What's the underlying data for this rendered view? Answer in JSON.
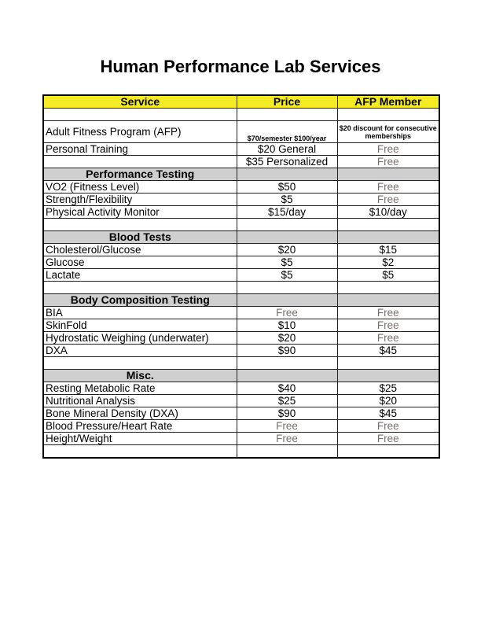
{
  "title": "Human Performance Lab Services",
  "colors": {
    "header_bg": "#f5eb22",
    "section_bg": "#cfcfcf",
    "free_text": "#7d716c"
  },
  "table": {
    "headers": [
      "Service",
      "Price",
      "AFP Member"
    ],
    "rows": [
      {
        "type": "blank"
      },
      {
        "type": "afp",
        "cells": [
          "Adult Fitness Program (AFP)",
          "$70/semester  $100/year",
          "$20 discount for consecutive memberships"
        ]
      },
      {
        "type": "data",
        "cells": [
          "Personal Training",
          "$20 General",
          "Free"
        ]
      },
      {
        "type": "data",
        "cells": [
          "",
          "$35 Personalized",
          "Free"
        ]
      },
      {
        "type": "section",
        "cells": [
          "Performance Testing",
          "",
          ""
        ]
      },
      {
        "type": "data",
        "cells": [
          "VO2 (Fitness Level)",
          "$50",
          "Free"
        ]
      },
      {
        "type": "data",
        "cells": [
          "Strength/Flexibility",
          "$5",
          "Free"
        ]
      },
      {
        "type": "data",
        "cells": [
          "Physical Activity Monitor",
          "$15/day",
          "$10/day"
        ]
      },
      {
        "type": "blank"
      },
      {
        "type": "section",
        "cells": [
          "Blood Tests",
          "",
          ""
        ]
      },
      {
        "type": "data",
        "cells": [
          "Cholesterol/Glucose",
          "$20",
          "$15"
        ]
      },
      {
        "type": "data",
        "cells": [
          "Glucose",
          "$5",
          "$2"
        ]
      },
      {
        "type": "data",
        "cells": [
          "Lactate",
          "$5",
          "$5"
        ]
      },
      {
        "type": "blank"
      },
      {
        "type": "section",
        "cells": [
          "Body Composition Testing",
          "",
          ""
        ]
      },
      {
        "type": "data",
        "cells": [
          "BIA",
          "Free",
          "Free"
        ]
      },
      {
        "type": "data",
        "cells": [
          "SkinFold",
          "$10",
          "Free"
        ]
      },
      {
        "type": "data",
        "cells": [
          "Hydrostatic Weighing (underwater)",
          "$20",
          "Free"
        ]
      },
      {
        "type": "data",
        "cells": [
          "DXA",
          "$90",
          "$45"
        ]
      },
      {
        "type": "blank"
      },
      {
        "type": "section",
        "cells": [
          "Misc.",
          "",
          ""
        ]
      },
      {
        "type": "data",
        "cells": [
          "Resting Metabolic Rate",
          "$40",
          "$25"
        ]
      },
      {
        "type": "data",
        "cells": [
          "Nutritional Analysis",
          "$25",
          "$20"
        ]
      },
      {
        "type": "data",
        "cells": [
          "Bone Mineral Density (DXA)",
          "$90",
          "$45"
        ]
      },
      {
        "type": "data",
        "cells": [
          "Blood Pressure/Heart Rate",
          "Free",
          "Free"
        ]
      },
      {
        "type": "data",
        "cells": [
          "Height/Weight",
          "Free",
          "Free"
        ]
      },
      {
        "type": "blank"
      }
    ]
  }
}
